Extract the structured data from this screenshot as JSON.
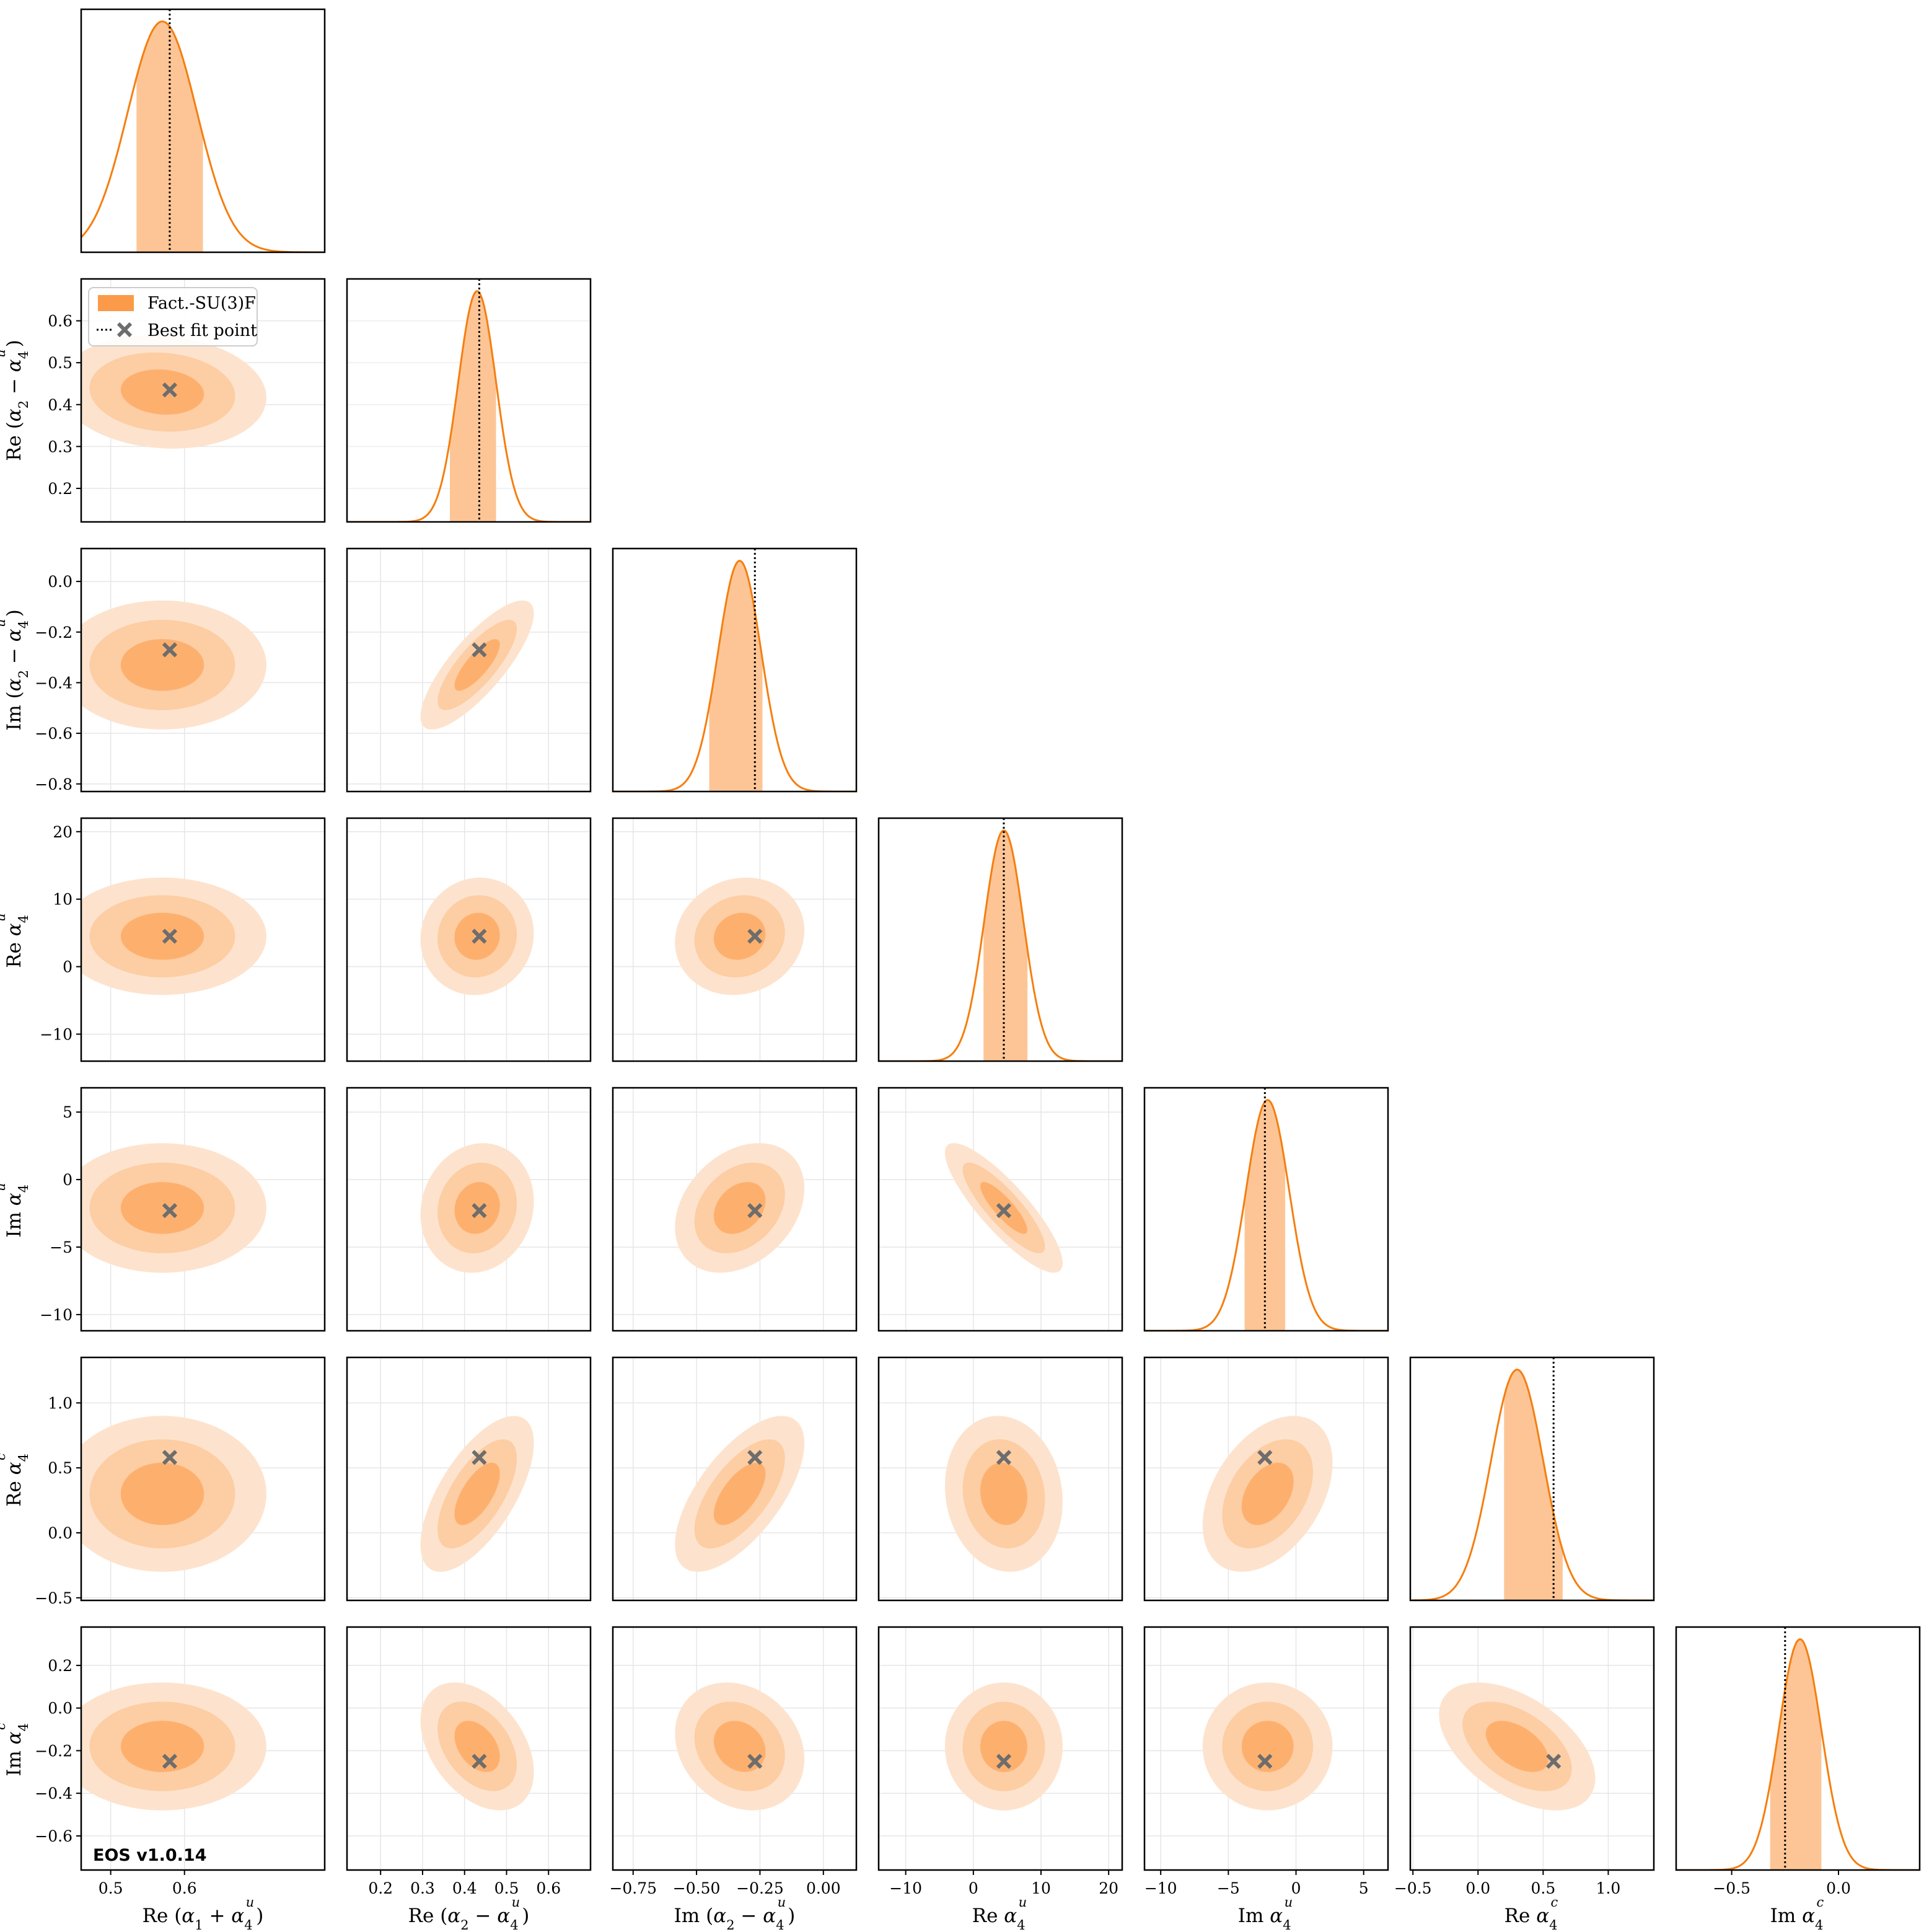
{
  "colors": {
    "kde_line": "#f57e0f",
    "band": "#fdc596",
    "c_inner": "#fdb06e",
    "c_mid": "#fdcda4",
    "c_outer": "#fde3cd",
    "best": "#6d6d6d",
    "watermark": "#f7a57a",
    "legend_patch": "#fb9a48"
  },
  "legend": {
    "entries": [
      {
        "label": "Fact.-SU(3)F",
        "icon": "filled-patch"
      },
      {
        "label": "Best fit point",
        "icon": "dotted-line-and-x-marker"
      }
    ]
  },
  "watermark": "EOS v1.0.14",
  "chart_data": {
    "type": "corner",
    "grid": true,
    "legend_location": "upper-left of row 2, column 1 panel",
    "parameters": [
      {
        "label": "Re (α1 + α4^u)",
        "range": [
          0.46,
          0.79
        ],
        "ticks": [
          0.5,
          0.6
        ],
        "tick_labels": [
          "0.5",
          "0.6"
        ],
        "best_fit": 0.58,
        "interval": [
          0.535,
          0.625
        ],
        "peak": 0.57,
        "sigma": 0.047
      },
      {
        "label": "Re (α2 − α4^u)",
        "range": [
          0.12,
          0.7
        ],
        "ticks": [
          0.2,
          0.3,
          0.4,
          0.5,
          0.6
        ],
        "tick_labels": [
          "0.2",
          "0.3",
          "0.4",
          "0.5",
          "0.6"
        ],
        "best_fit": 0.435,
        "interval": [
          0.365,
          0.475
        ],
        "peak": 0.43,
        "sigma": 0.045
      },
      {
        "label": "Im (α2 − α4^u)",
        "range": [
          -0.83,
          0.13
        ],
        "ticks": [
          -0.8,
          -0.6,
          -0.4,
          -0.2,
          0.0
        ],
        "tick_labels": [
          "−0.8",
          "−0.6",
          "−0.4",
          "−0.2",
          "0.0"
        ],
        "x_ticks": [
          -0.75,
          -0.5,
          -0.25,
          0.0
        ],
        "x_tick_labels": [
          "−0.75",
          "−0.50",
          "−0.25",
          "0.00"
        ],
        "best_fit": -0.27,
        "interval": [
          -0.45,
          -0.24
        ],
        "peak": -0.33,
        "sigma": 0.085
      },
      {
        "label": "Re α4^u",
        "range": [
          -14,
          22
        ],
        "ticks": [
          -10,
          0,
          10,
          20
        ],
        "tick_labels": [
          "−10",
          "0",
          "10",
          "20"
        ],
        "best_fit": 4.5,
        "interval": [
          1.5,
          8.0
        ],
        "peak": 4.5,
        "sigma": 2.9
      },
      {
        "label": "Im α4^u",
        "range": [
          -11.2,
          6.8
        ],
        "ticks": [
          -10,
          -5,
          0,
          5
        ],
        "tick_labels": [
          "−10",
          "−5",
          "0",
          "5"
        ],
        "best_fit": -2.3,
        "interval": [
          -3.8,
          -0.8
        ],
        "peak": -2.1,
        "sigma": 1.6
      },
      {
        "label": "Re α4^c",
        "range": [
          -0.52,
          1.35
        ],
        "ticks": [
          -0.5,
          0.0,
          0.5,
          1.0
        ],
        "tick_labels": [
          "−0.5",
          "0.0",
          "0.5",
          "1.0"
        ],
        "best_fit": 0.58,
        "interval": [
          0.2,
          0.65
        ],
        "peak": 0.3,
        "sigma": 0.2
      },
      {
        "label": "Im α4^c",
        "range": [
          -0.76,
          0.38
        ],
        "ticks": [
          -0.6,
          -0.4,
          -0.2,
          0.0,
          0.2
        ],
        "tick_labels": [
          "−0.6",
          "−0.4",
          "−0.2",
          "0.0",
          "0.2"
        ],
        "x_ticks": [
          -0.5,
          0.0
        ],
        "x_tick_labels": [
          "−0.5",
          "0.0"
        ],
        "best_fit": -0.25,
        "interval": [
          -0.32,
          -0.08
        ],
        "peak": -0.18,
        "sigma": 0.1
      }
    ],
    "correlations": [
      [
        0,
        0,
        0,
        0,
        0,
        0,
        0
      ],
      [
        -0.1,
        0,
        0,
        0,
        0,
        0,
        0
      ],
      [
        0.0,
        0.8,
        0,
        0,
        0,
        0,
        0
      ],
      [
        0.0,
        0.05,
        0.1,
        0,
        0,
        0,
        0
      ],
      [
        0.0,
        0.1,
        0.3,
        -0.85,
        0,
        0,
        0
      ],
      [
        0.0,
        0.65,
        0.65,
        -0.1,
        0.4,
        0,
        0
      ],
      [
        0.0,
        -0.4,
        -0.2,
        0.0,
        0.0,
        -0.5,
        0
      ]
    ]
  }
}
